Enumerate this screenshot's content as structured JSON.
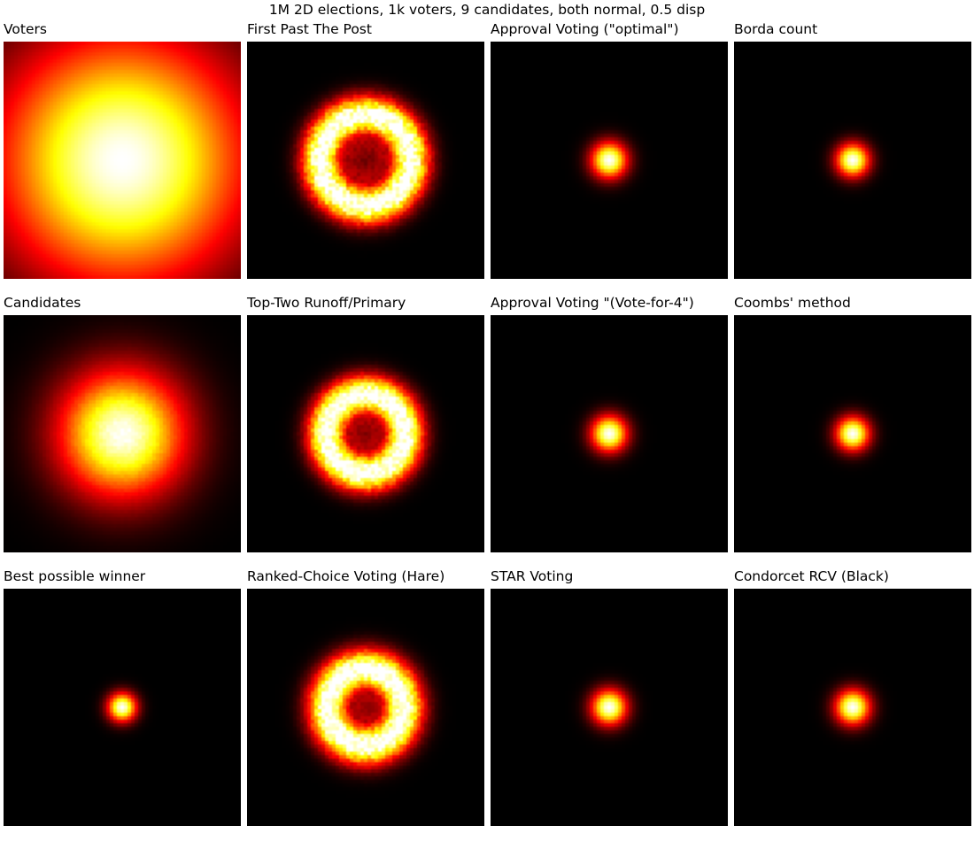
{
  "suptitle": "1M 2D elections, 1k voters, 9 candidates, both normal, 0.5 disp",
  "colormap": "hot",
  "chart_data": [
    {
      "type": "heatmap",
      "title": "Voters",
      "pattern": "blob",
      "spread": 0.62,
      "peak": 1.0,
      "noise": 0.0
    },
    {
      "type": "heatmap",
      "title": "First Past The Post",
      "pattern": "ring",
      "ring_radius": 0.19,
      "ring_width": 0.1,
      "center_level": 0.3,
      "noise": 0.3
    },
    {
      "type": "heatmap",
      "title": "Approval Voting (\"optimal\")",
      "pattern": "blob",
      "spread": 0.088,
      "peak": 1.0,
      "noise": 0.0
    },
    {
      "type": "heatmap",
      "title": "Borda count",
      "pattern": "blob",
      "spread": 0.081,
      "peak": 1.0,
      "noise": 0.0
    },
    {
      "type": "heatmap",
      "title": "Candidates",
      "pattern": "blob",
      "spread": 0.31,
      "peak": 1.0,
      "noise": 0.05
    },
    {
      "type": "heatmap",
      "title": "Top-Two Runoff/Primary",
      "pattern": "ring",
      "ring_radius": 0.165,
      "ring_width": 0.1,
      "center_level": 0.3,
      "noise": 0.25
    },
    {
      "type": "heatmap",
      "title": "Approval Voting \"(Vote-for-4\")",
      "pattern": "blob",
      "spread": 0.088,
      "peak": 1.0,
      "noise": 0.0
    },
    {
      "type": "heatmap",
      "title": "Coombs' method",
      "pattern": "blob",
      "spread": 0.082,
      "peak": 1.0,
      "noise": 0.0
    },
    {
      "type": "heatmap",
      "title": "Best possible winner",
      "pattern": "blob",
      "spread": 0.07,
      "peak": 1.0,
      "noise": 0.0
    },
    {
      "type": "heatmap",
      "title": "Ranked-Choice Voting (Hare)",
      "pattern": "ring",
      "ring_radius": 0.16,
      "ring_width": 0.105,
      "center_level": 0.3,
      "noise": 0.25
    },
    {
      "type": "heatmap",
      "title": "STAR Voting",
      "pattern": "blob",
      "spread": 0.086,
      "peak": 1.0,
      "noise": 0.0
    },
    {
      "type": "heatmap",
      "title": "Condorcet RCV (Black)",
      "pattern": "blob",
      "spread": 0.085,
      "peak": 1.0,
      "noise": 0.0
    }
  ]
}
